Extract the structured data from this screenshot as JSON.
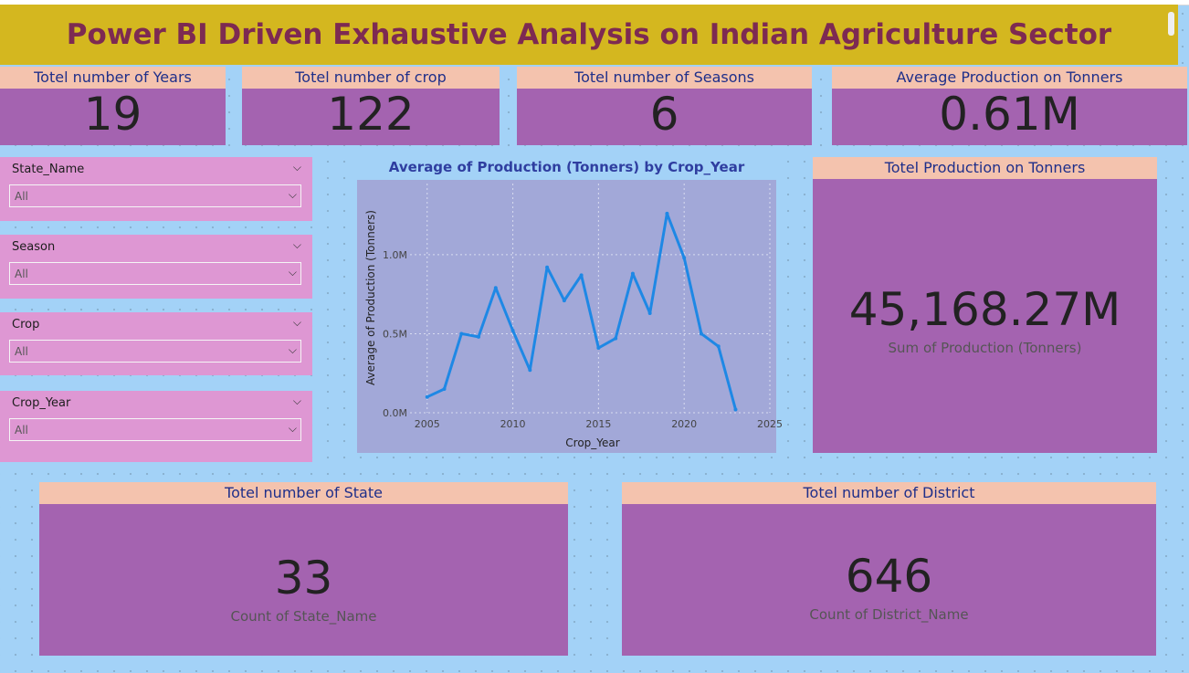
{
  "title": "Power BI Driven Exhaustive Analysis on Indian Agriculture Sector",
  "kpis": {
    "years": {
      "label": "Totel number of Years",
      "value": "19"
    },
    "crops": {
      "label": "Totel number of crop",
      "value": "122"
    },
    "seasons": {
      "label": "Totel number of Seasons",
      "value": "6"
    },
    "avg_production": {
      "label": "Average Production on Tonners",
      "value": "0.61M"
    }
  },
  "slicers": [
    {
      "label": "State_Name",
      "value": "All"
    },
    {
      "label": "Season",
      "value": "All"
    },
    {
      "label": "Crop",
      "value": "All"
    },
    {
      "label": "Crop_Year",
      "value": "All"
    }
  ],
  "total_production": {
    "label": "Totel Production on Tonners",
    "value": "45,168.27M",
    "sub": "Sum of Production (Tonners)"
  },
  "state_card": {
    "label": "Totel number of State",
    "value": "33",
    "sub": "Count of State_Name"
  },
  "district_card": {
    "label": "Totel number of District",
    "value": "646",
    "sub": "Count of District_Name"
  },
  "colors": {
    "line": "#1e88e5",
    "plot_bg": "#a2a8d8",
    "card": "#a463b0",
    "header": "#f4c3ae",
    "title_bar": "#d4b71f"
  },
  "chart_data": {
    "type": "line",
    "title": "Average of Production (Tonners) by Crop_Year",
    "xlabel": "Crop_Year",
    "ylabel": "Average of Production (Tonners)",
    "x_ticks": [
      "2005",
      "2010",
      "2015",
      "2020",
      "2025"
    ],
    "y_ticks": [
      "0.0M",
      "0.5M",
      "1.0M"
    ],
    "xlim": [
      2004,
      2025
    ],
    "ylim": [
      0,
      1.45
    ],
    "grid": true,
    "series": [
      {
        "x": [
          2005,
          2006,
          2007,
          2008,
          2009,
          2010,
          2011,
          2012,
          2013,
          2014,
          2015,
          2016,
          2017,
          2018,
          2019,
          2020,
          2021,
          2022,
          2023
        ],
        "values": [
          0.1,
          0.15,
          0.5,
          0.48,
          0.79,
          0.52,
          0.27,
          0.92,
          0.71,
          0.87,
          0.41,
          0.47,
          0.88,
          0.63,
          1.26,
          0.98,
          0.5,
          0.42,
          0.02
        ]
      }
    ]
  }
}
